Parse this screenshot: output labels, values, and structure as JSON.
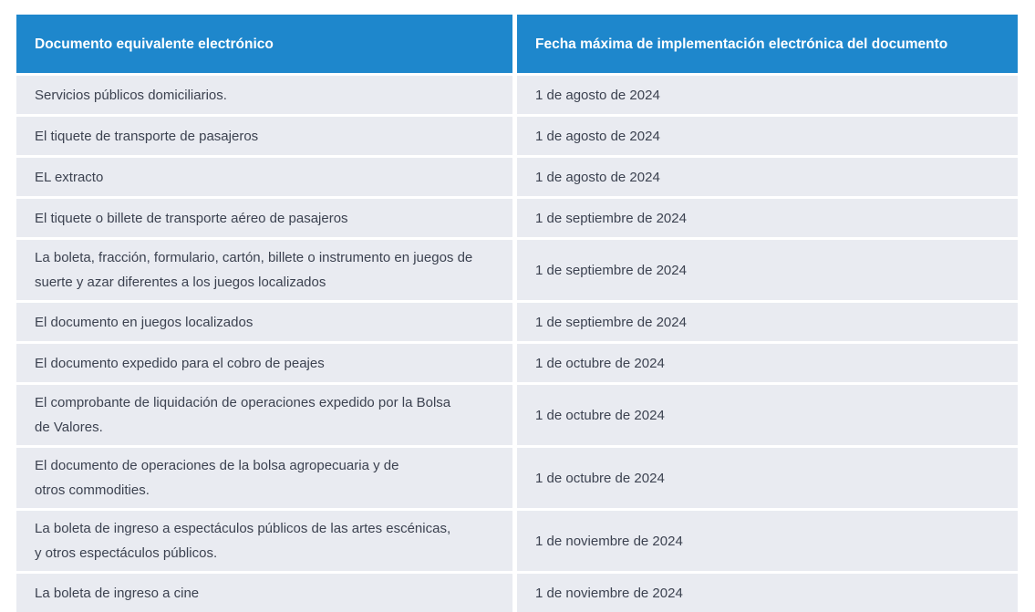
{
  "colors": {
    "header_bg": "#1e87cc",
    "row_bg": "#e9ebf1",
    "header_text": "#ffffff",
    "body_text": "#3c4250",
    "page_bg": "#ffffff"
  },
  "table": {
    "columns": [
      {
        "label": "Documento equivalente electrónico"
      },
      {
        "label": "Fecha máxima de implementación electrónica del documento"
      }
    ],
    "rows": [
      {
        "documento": "Servicios públicos domiciliarios.",
        "fecha": "1 de agosto de 2024"
      },
      {
        "documento": "El tiquete de transporte de pasajeros",
        "fecha": "1 de agosto de 2024"
      },
      {
        "documento": "EL extracto",
        "fecha": "1 de agosto de 2024"
      },
      {
        "documento": "El tiquete o billete de transporte aéreo de pasajeros",
        "fecha": "1 de septiembre de 2024"
      },
      {
        "documento": "La boleta, fracción, formulario, cartón, billete o instrumento en juegos de\nsuerte y azar diferentes a los juegos localizados",
        "fecha": "1 de septiembre de 2024"
      },
      {
        "documento": "El documento en juegos localizados",
        "fecha": "1 de septiembre de 2024"
      },
      {
        "documento": "El documento expedido para el cobro de peajes",
        "fecha": "1 de octubre de 2024"
      },
      {
        "documento": "El comprobante de liquidación de operaciones expedido por la Bolsa\nde Valores.",
        "fecha": "1 de octubre de 2024"
      },
      {
        "documento": "El documento de operaciones de la bolsa agropecuaria y de\notros commodities.",
        "fecha": "1 de octubre de 2024"
      },
      {
        "documento": "La boleta de ingreso a espectáculos públicos de las artes escénicas,\ny otros espectáculos públicos.",
        "fecha": "1 de noviembre de 2024"
      },
      {
        "documento": "La boleta de ingreso a cine",
        "fecha": "1 de noviembre de 2024"
      }
    ]
  }
}
